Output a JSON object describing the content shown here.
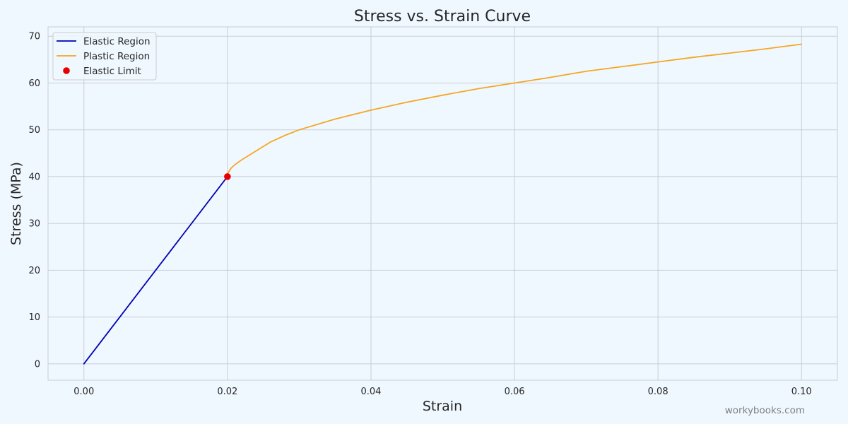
{
  "chart_data": {
    "type": "line",
    "title": "Stress vs. Strain Curve",
    "xlabel": "Strain",
    "ylabel": "Stress (MPa)",
    "xlim": [
      -0.005,
      0.105
    ],
    "ylim": [
      -3.5,
      72
    ],
    "x_ticks": [
      0.0,
      0.02,
      0.04,
      0.06,
      0.08,
      0.1
    ],
    "x_tick_labels": [
      "0.00",
      "0.02",
      "0.04",
      "0.06",
      "0.08",
      "0.10"
    ],
    "y_ticks": [
      0,
      10,
      20,
      30,
      40,
      50,
      60,
      70
    ],
    "y_tick_labels": [
      "0",
      "10",
      "20",
      "30",
      "40",
      "50",
      "60",
      "70"
    ],
    "grid": true,
    "legend_position": "top-left",
    "series": [
      {
        "name": "Elastic Region",
        "kind": "line",
        "color": "#0000b3",
        "x": [
          0.0,
          0.02
        ],
        "y": [
          0,
          40
        ]
      },
      {
        "name": "Plastic Region",
        "kind": "line",
        "color": "#f5a623",
        "x": [
          0.02,
          0.0201,
          0.0205,
          0.021,
          0.022,
          0.024,
          0.026,
          0.028,
          0.03,
          0.035,
          0.04,
          0.045,
          0.05,
          0.055,
          0.06,
          0.065,
          0.07,
          0.075,
          0.08,
          0.085,
          0.09,
          0.095,
          0.1
        ],
        "y": [
          40.0,
          40.8,
          41.8,
          42.5,
          43.6,
          45.5,
          47.4,
          48.8,
          50.0,
          52.3,
          54.2,
          55.9,
          57.4,
          58.8,
          60.0,
          61.2,
          62.5,
          63.5,
          64.5,
          65.5,
          66.4,
          67.3,
          68.3
        ]
      },
      {
        "name": "Elastic Limit",
        "kind": "marker",
        "color": "#e60000",
        "x": [
          0.02
        ],
        "y": [
          40
        ]
      }
    ]
  },
  "watermark": "workybooks.com"
}
